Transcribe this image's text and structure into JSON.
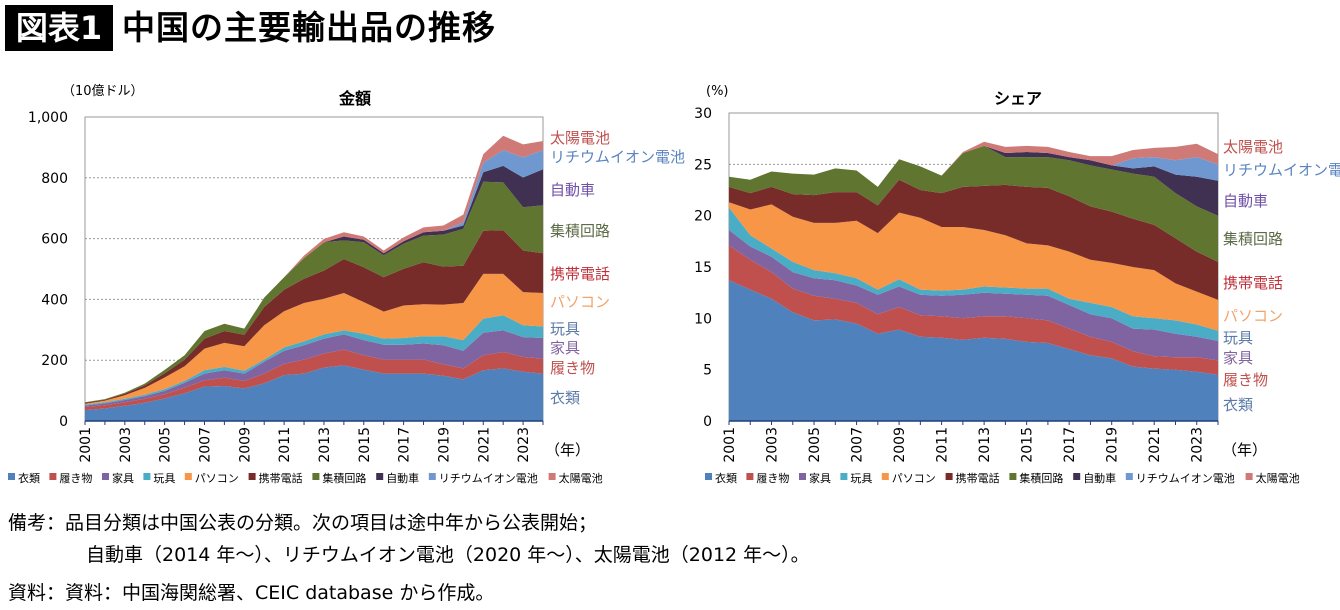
{
  "header": {
    "badge": "図表1",
    "title": "中国の主要輸出品の推移"
  },
  "colors": {
    "clothing": "#4f81bd",
    "footwear": "#c0504d",
    "furniture": "#8064a2",
    "toys": "#4bacc6",
    "pc": "#f79646",
    "phone": "#772c2a",
    "ic": "#5f7530",
    "auto": "#403152",
    "liion": "#6f98d0",
    "solar": "#d07a78"
  },
  "series_labels": {
    "clothing": "衣類",
    "footwear": "履き物",
    "furniture": "家具",
    "toys": "玩具",
    "pc": "パソコン",
    "phone": "携帯電話",
    "ic": "集積回路",
    "auto": "自動車",
    "liion": "リチウムイオン電池",
    "solar": "太陽電池"
  },
  "label_colors": {
    "clothing": "#5a7aa8",
    "footwear": "#c0504d",
    "furniture": "#8064a2",
    "toys": "#5a7aa8",
    "pc": "#f2a36a",
    "phone": "#c0303a",
    "ic": "#5b6b45",
    "auto": "#7050a8",
    "liion": "#5a84c0",
    "solar": "#c0504d"
  },
  "chart_data": [
    {
      "type": "area",
      "stacked": true,
      "title": "金額",
      "ylabel": "（10億ドル）",
      "xlabel": "（年）",
      "ylim": [
        0,
        1000
      ],
      "yticks": [
        "0",
        "200",
        "400",
        "600",
        "800",
        "1,000"
      ],
      "grid": true,
      "legend": "bottom",
      "x": [
        2001,
        2002,
        2003,
        2004,
        2005,
        2006,
        2007,
        2008,
        2009,
        2010,
        2011,
        2012,
        2013,
        2014,
        2015,
        2016,
        2017,
        2018,
        2019,
        2020,
        2021,
        2022,
        2023,
        2024
      ],
      "xticks": [
        "2001",
        "2003",
        "2005",
        "2007",
        "2009",
        "2011",
        "2013",
        "2015",
        "2017",
        "2019",
        "2021",
        "2023"
      ],
      "series": [
        {
          "key": "clothing",
          "name": "衣類",
          "values": [
            36,
            41,
            50,
            60,
            74,
            91,
            113,
            115,
            107,
            124,
            151,
            156,
            176,
            183,
            169,
            156,
            156,
            156,
            149,
            137,
            167,
            173,
            162,
            156
          ]
        },
        {
          "key": "footwear",
          "name": "履き物",
          "values": [
            10,
            11,
            12,
            13,
            14,
            19,
            21,
            27,
            25,
            32,
            37,
            46,
            46,
            52,
            47,
            46,
            46,
            46,
            38,
            36,
            49,
            54,
            49,
            49
          ]
        },
        {
          "key": "furniture",
          "name": "家具",
          "values": [
            5,
            6,
            7,
            9,
            11,
            16,
            22,
            25,
            24,
            39,
            43,
            47,
            49,
            50,
            50,
            49,
            49,
            53,
            62,
            58,
            74,
            71,
            65,
            68
          ]
        },
        {
          "key": "toys",
          "name": "玩具",
          "values": [
            3,
            4,
            4,
            5,
            6,
            6,
            11,
            11,
            9,
            7,
            11,
            13,
            14,
            13,
            21,
            20,
            22,
            24,
            30,
            35,
            47,
            50,
            39,
            38
          ]
        },
        {
          "key": "pc",
          "name": "パソコン",
          "values": [
            3,
            5,
            12,
            22,
            38,
            48,
            71,
            79,
            81,
            113,
            119,
            126,
            117,
            123,
            104,
            89,
            107,
            105,
            104,
            122,
            147,
            136,
            109,
            110
          ]
        },
        {
          "key": "phone",
          "name": "携帯電話",
          "values": [
            3,
            3,
            5,
            8,
            14,
            22,
            33,
            39,
            38,
            60,
            71,
            80,
            93,
            112,
            115,
            113,
            121,
            138,
            125,
            123,
            142,
            144,
            137,
            131
          ]
        },
        {
          "key": "ic",
          "name": "集積回路",
          "values": [
            2,
            2,
            3,
            6,
            11,
            14,
            25,
            24,
            20,
            31,
            41,
            68,
            93,
            61,
            82,
            72,
            82,
            88,
            105,
            121,
            161,
            157,
            142,
            158
          ]
        },
        {
          "key": "auto",
          "name": "自動車",
          "values": [
            0,
            0,
            0,
            0,
            0,
            0,
            0,
            0,
            0,
            0,
            0,
            0,
            0,
            13,
            8,
            7,
            8,
            11,
            13,
            11,
            31,
            54,
            98,
            118
          ]
        },
        {
          "key": "liion",
          "name": "リチウムイオン電池",
          "values": [
            0,
            0,
            0,
            0,
            0,
            0,
            0,
            0,
            0,
            0,
            0,
            0,
            0,
            0,
            0,
            0,
            0,
            0,
            0,
            11,
            32,
            52,
            66,
            63
          ]
        },
        {
          "key": "solar",
          "name": "太陽電池",
          "values": [
            0,
            0,
            0,
            0,
            0,
            0,
            0,
            0,
            0,
            0,
            0,
            8,
            11,
            14,
            11,
            9,
            13,
            16,
            17,
            25,
            28,
            47,
            43,
            30
          ]
        }
      ]
    },
    {
      "type": "area",
      "stacked": true,
      "title": "シェア",
      "ylabel": "(%)",
      "xlabel": "（年）",
      "ylim": [
        0,
        30
      ],
      "yticks": [
        "0",
        "5",
        "10",
        "15",
        "20",
        "25",
        "30"
      ],
      "grid": true,
      "legend": "bottom",
      "x": [
        2001,
        2002,
        2003,
        2004,
        2005,
        2006,
        2007,
        2008,
        2009,
        2010,
        2011,
        2012,
        2013,
        2014,
        2015,
        2016,
        2017,
        2018,
        2019,
        2020,
        2021,
        2022,
        2023,
        2024
      ],
      "xticks": [
        "2001",
        "2003",
        "2005",
        "2007",
        "2009",
        "2011",
        "2013",
        "2015",
        "2017",
        "2019",
        "2021",
        "2023"
      ],
      "series": [
        {
          "key": "clothing",
          "name": "衣類",
          "values": [
            13.7,
            12.8,
            11.9,
            10.6,
            9.8,
            9.9,
            9.5,
            8.5,
            8.9,
            8.2,
            8.1,
            7.9,
            8.1,
            8.0,
            7.7,
            7.6,
            7.0,
            6.4,
            6.1,
            5.3,
            5.1,
            5.0,
            4.8,
            4.5
          ]
        },
        {
          "key": "footwear",
          "name": "履き物",
          "values": [
            3.4,
            2.9,
            2.6,
            2.3,
            2.4,
            2.0,
            2.0,
            1.9,
            2.2,
            2.1,
            2.1,
            2.1,
            2.1,
            2.2,
            2.3,
            2.2,
            2.0,
            1.8,
            1.6,
            1.5,
            1.2,
            1.2,
            1.4,
            1.4
          ]
        },
        {
          "key": "furniture",
          "name": "家具",
          "values": [
            1.5,
            1.3,
            1.5,
            1.6,
            1.7,
            1.8,
            1.7,
            1.9,
            2.0,
            2.0,
            2.0,
            2.3,
            2.3,
            2.2,
            2.3,
            2.4,
            2.3,
            2.2,
            2.3,
            2.2,
            2.6,
            2.3,
            2.0,
            1.9
          ]
        },
        {
          "key": "toys",
          "name": "玩具",
          "values": [
            2.2,
            1.1,
            0.8,
            1.0,
            0.8,
            0.7,
            0.7,
            0.5,
            0.7,
            0.5,
            0.5,
            0.5,
            0.6,
            0.6,
            0.6,
            0.7,
            0.6,
            1.1,
            1.1,
            1.2,
            1.1,
            1.3,
            1.2,
            1.0
          ]
        },
        {
          "key": "pc",
          "name": "パソコン",
          "values": [
            0.5,
            2.5,
            4.3,
            4.4,
            4.6,
            4.9,
            5.6,
            5.5,
            6.5,
            7.0,
            6.2,
            6.1,
            5.5,
            5.1,
            4.4,
            4.2,
            4.6,
            4.2,
            4.3,
            4.8,
            4.7,
            3.6,
            3.2,
            3.0
          ]
        },
        {
          "key": "phone",
          "name": "携帯電話",
          "values": [
            1.5,
            1.6,
            1.7,
            2.2,
            2.7,
            3.0,
            2.8,
            2.7,
            3.2,
            2.7,
            3.3,
            3.9,
            4.3,
            4.9,
            5.5,
            5.6,
            5.4,
            5.2,
            5.0,
            4.7,
            4.4,
            4.4,
            3.9,
            3.7
          ]
        },
        {
          "key": "ic",
          "name": "集積回路",
          "values": [
            1.0,
            1.3,
            1.5,
            2.0,
            2.0,
            2.3,
            2.1,
            1.8,
            2.0,
            2.3,
            1.7,
            3.3,
            3.9,
            2.7,
            2.9,
            3.0,
            3.5,
            4.0,
            4.1,
            4.4,
            4.7,
            4.4,
            4.4,
            4.5
          ]
        },
        {
          "key": "auto",
          "name": "自動車",
          "values": [
            0,
            0,
            0,
            0,
            0,
            0,
            0,
            0,
            0,
            0,
            0,
            0,
            0,
            0.4,
            0.5,
            0.4,
            0.3,
            0.5,
            0.4,
            0.5,
            1.0,
            1.8,
            2.9,
            3.4
          ]
        },
        {
          "key": "liion",
          "name": "リチウムイオン電池",
          "values": [
            0,
            0,
            0,
            0,
            0,
            0,
            0,
            0,
            0,
            0,
            0,
            0,
            0,
            0,
            0,
            0,
            0,
            0,
            0,
            1.0,
            0.9,
            1.4,
            1.9,
            1.6
          ]
        },
        {
          "key": "solar",
          "name": "太陽電池",
          "values": [
            0,
            0,
            0,
            0,
            0,
            0,
            0,
            0,
            0,
            0,
            0,
            0.1,
            0.4,
            0.6,
            0.6,
            0.6,
            0.5,
            0.4,
            0.9,
            0.8,
            0.9,
            1.3,
            1.3,
            1.0
          ]
        }
      ]
    }
  ],
  "notes": {
    "remarks_label": "備考：",
    "remarks_line1": "品目分類は中国公表の分類。次の項目は途中年から公表開始；",
    "remarks_line2": "自動車（2014 年～）、リチウムイオン電池（2020 年～）、太陽電池（2012 年～）。",
    "source_label": "資料：",
    "source_text": "資料：中国海関総署、CEIC database から作成。"
  }
}
